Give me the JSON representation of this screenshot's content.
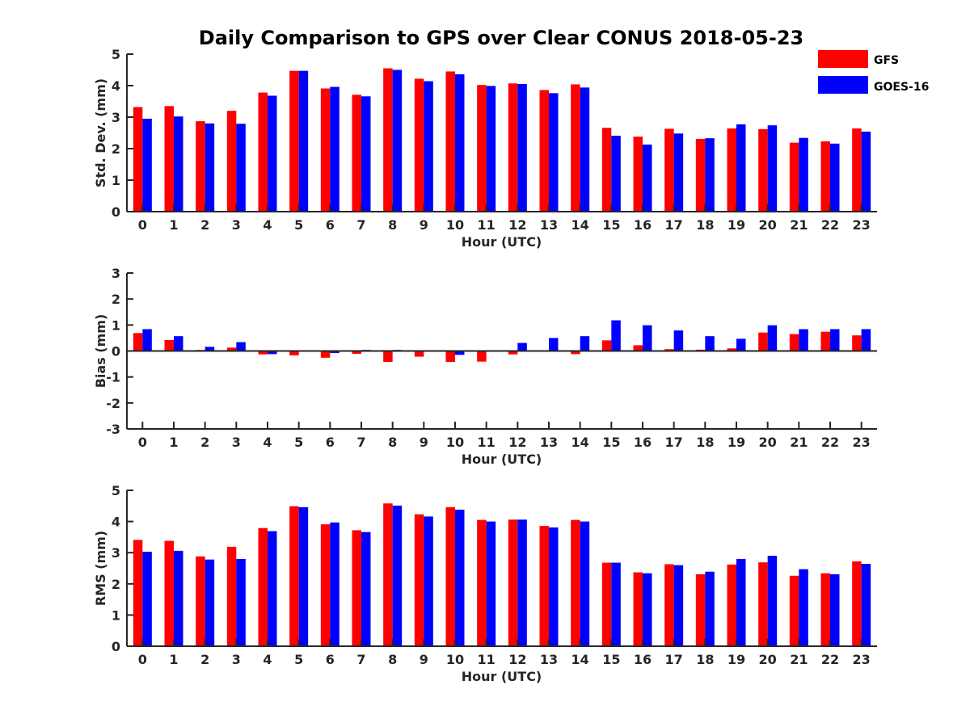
{
  "title": "Daily Comparison to GPS over Clear CONUS 2018-05-23",
  "colors": {
    "gfs": "#ff0000",
    "goes": "#0000ff",
    "axis": "#262626"
  },
  "legend": [
    {
      "name": "GFS",
      "color": "#ff0000"
    },
    {
      "name": "GOES-16",
      "color": "#0000ff"
    }
  ],
  "chart_data": [
    {
      "type": "bar",
      "title": "Daily Comparison to GPS over Clear CONUS 2018-05-23",
      "xlabel": "Hour (UTC)",
      "ylabel": "Std. Dev. (mm)",
      "ylim": [
        0,
        5
      ],
      "yticks": [
        0,
        1,
        2,
        3,
        4,
        5
      ],
      "categories": [
        "0",
        "1",
        "2",
        "3",
        "4",
        "5",
        "6",
        "7",
        "8",
        "9",
        "10",
        "11",
        "12",
        "13",
        "14",
        "15",
        "16",
        "17",
        "18",
        "19",
        "20",
        "21",
        "22",
        "23"
      ],
      "series": [
        {
          "name": "GFS",
          "values": [
            3.32,
            3.35,
            2.87,
            3.2,
            3.78,
            4.47,
            3.91,
            3.71,
            4.55,
            4.22,
            4.45,
            4.02,
            4.07,
            3.86,
            4.04,
            2.66,
            2.38,
            2.63,
            2.31,
            2.64,
            2.62,
            2.19,
            2.23,
            2.64
          ]
        },
        {
          "name": "GOES-16",
          "values": [
            2.95,
            3.02,
            2.8,
            2.79,
            3.68,
            4.47,
            3.96,
            3.66,
            4.5,
            4.14,
            4.36,
            3.99,
            4.05,
            3.76,
            3.94,
            2.41,
            2.13,
            2.48,
            2.33,
            2.77,
            2.74,
            2.34,
            2.16,
            2.54
          ]
        }
      ]
    },
    {
      "type": "bar",
      "xlabel": "Hour (UTC)",
      "ylabel": "Bias (mm)",
      "ylim": [
        -3,
        3
      ],
      "yticks": [
        -3,
        -2,
        -1,
        0,
        1,
        2,
        3
      ],
      "categories": [
        "0",
        "1",
        "2",
        "3",
        "4",
        "5",
        "6",
        "7",
        "8",
        "9",
        "10",
        "11",
        "12",
        "13",
        "14",
        "15",
        "16",
        "17",
        "18",
        "19",
        "20",
        "21",
        "22",
        "23"
      ],
      "series": [
        {
          "name": "GFS",
          "values": [
            0.69,
            0.42,
            0.04,
            0.13,
            -0.13,
            -0.17,
            -0.26,
            -0.11,
            -0.42,
            -0.22,
            -0.42,
            -0.41,
            -0.13,
            0.0,
            -0.12,
            0.41,
            0.22,
            0.07,
            0.05,
            0.1,
            0.71,
            0.65,
            0.74,
            0.6
          ]
        },
        {
          "name": "GOES-16",
          "values": [
            0.84,
            0.57,
            0.16,
            0.34,
            -0.12,
            0.0,
            -0.08,
            0.04,
            0.04,
            0.0,
            -0.15,
            0.0,
            0.31,
            0.5,
            0.57,
            1.18,
            0.99,
            0.79,
            0.57,
            0.47,
            0.99,
            0.84,
            0.84,
            0.84
          ]
        }
      ]
    },
    {
      "type": "bar",
      "xlabel": "Hour (UTC)",
      "ylabel": "RMS (mm)",
      "ylim": [
        0,
        5
      ],
      "yticks": [
        0,
        1,
        2,
        3,
        4,
        5
      ],
      "categories": [
        "0",
        "1",
        "2",
        "3",
        "4",
        "5",
        "6",
        "7",
        "8",
        "9",
        "10",
        "11",
        "12",
        "13",
        "14",
        "15",
        "16",
        "17",
        "18",
        "19",
        "20",
        "21",
        "22",
        "23"
      ],
      "series": [
        {
          "name": "GFS",
          "values": [
            3.41,
            3.38,
            2.88,
            3.19,
            3.79,
            4.49,
            3.91,
            3.72,
            4.58,
            4.23,
            4.46,
            4.05,
            4.06,
            3.86,
            4.05,
            2.68,
            2.37,
            2.63,
            2.31,
            2.62,
            2.69,
            2.26,
            2.34,
            2.72
          ]
        },
        {
          "name": "GOES-16",
          "values": [
            3.03,
            3.06,
            2.78,
            2.8,
            3.69,
            4.46,
            3.97,
            3.66,
            4.51,
            4.16,
            4.38,
            4.0,
            4.06,
            3.81,
            4.0,
            2.68,
            2.34,
            2.6,
            2.39,
            2.8,
            2.9,
            2.47,
            2.31,
            2.64
          ]
        }
      ]
    }
  ]
}
